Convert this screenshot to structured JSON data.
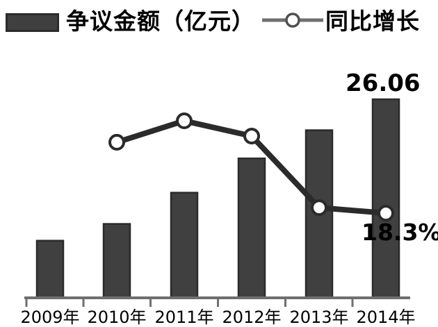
{
  "legend": {
    "bar_label": "争议金额（亿元）",
    "line_label": "同比增长"
  },
  "annotations": {
    "bar_value": "26.06",
    "line_value": "18.3%"
  },
  "colors": {
    "bar_fill": "#404040",
    "bar_border": "#2b2b2b",
    "line": "#2b2b2b",
    "marker_fill": "#ffffff",
    "marker_stroke": "#2b2b2b",
    "axis": "#6f6f6f",
    "legend_line": "#6f6f6f",
    "legend_marker_stroke": "#4f4f4f",
    "text": "#000000"
  },
  "chart_data": {
    "type": "bar+line",
    "title": "",
    "xlabel": "",
    "ylabel": "",
    "categories": [
      "2009年",
      "2010年",
      "2011年",
      "2012年",
      "2013年",
      "2014年"
    ],
    "series": [
      {
        "name": "争议金额（亿元）",
        "type": "bar",
        "unit": "亿元",
        "values": [
          7.5,
          9.7,
          13.8,
          18.3,
          22.0,
          26.06
        ],
        "values_estimated": true,
        "data_labels": {
          "2014年": "26.06"
        }
      },
      {
        "name": "同比增长",
        "type": "line",
        "unit": "%",
        "values": [
          null,
          38.8,
          45.0,
          40.6,
          19.9,
          18.3
        ],
        "values_estimated": true,
        "data_labels": {
          "2014年": "18.3%"
        }
      }
    ],
    "legend_position": "top",
    "grid": false,
    "y_axis_visible": false,
    "x_axis_visible": true
  }
}
